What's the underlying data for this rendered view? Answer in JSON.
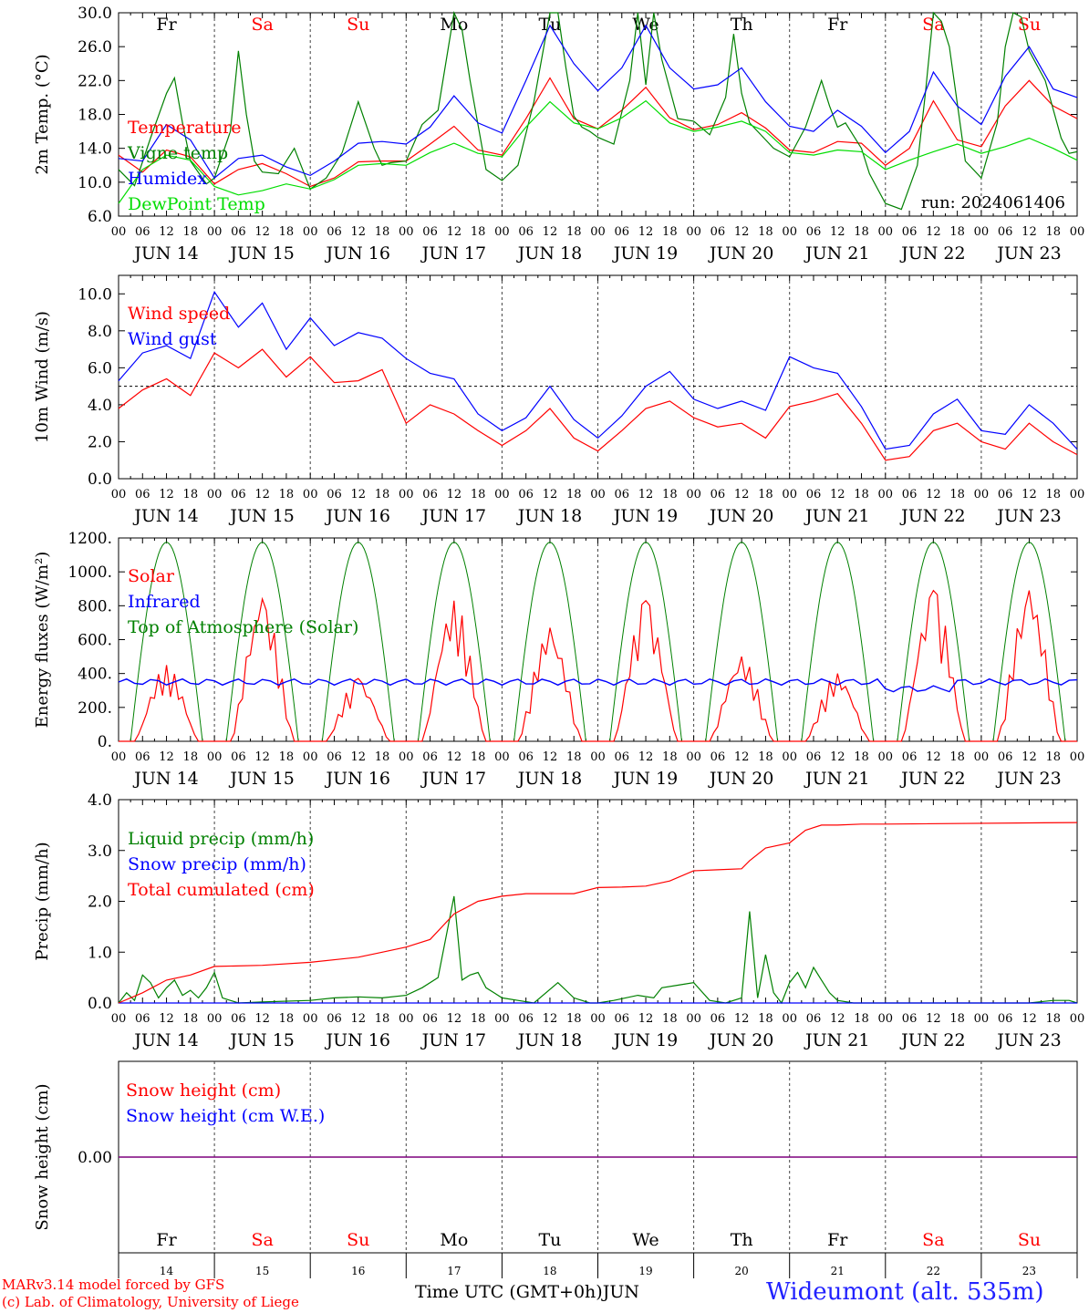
{
  "run_label": "run: 2024061406",
  "day_labels": [
    "Fr",
    "Sa",
    "Su",
    "Mo",
    "Tu",
    "We",
    "Th",
    "Fr",
    "Sa",
    "Su"
  ],
  "weekend_flags": [
    false,
    true,
    true,
    false,
    false,
    false,
    false,
    false,
    true,
    true
  ],
  "date_labels": [
    "JUN 14",
    "JUN 15",
    "JUN 16",
    "JUN 17",
    "JUN 18",
    "JUN 19",
    "JUN 20",
    "JUN 21",
    "JUN 22",
    "JUN 23"
  ],
  "hour_ticks": [
    "00",
    "06",
    "12",
    "18"
  ],
  "bottom_day_numbers": [
    "14",
    "15",
    "16",
    "17",
    "18",
    "19",
    "20",
    "21",
    "22",
    "23"
  ],
  "footer": {
    "model_line1": "MARv3.14 model forced by GFS",
    "model_line2": "(c) Lab. of Climatology, University of Liege",
    "xaxis_title": "Time UTC (GMT+0h)",
    "month": "JUN",
    "station": "Wideumont (alt. 535m)"
  },
  "colors": {
    "red": "#ff0000",
    "green": "#008000",
    "blue": "#0000ff",
    "lightgreen": "#00dd00",
    "purple": "#7f007f"
  },
  "chart_data": [
    {
      "type": "line",
      "ylabel": "2m Temp. (°C)",
      "ylim": [
        6,
        30
      ],
      "yticks": [
        "6.0",
        "10.0",
        "14.0",
        "18.0",
        "22.0",
        "26.0",
        "30.0"
      ],
      "x_unit": "hours since JUN 14 00 UTC",
      "series": [
        {
          "name": "Temperature",
          "color": "red",
          "x": [
            0,
            6,
            12,
            18,
            24,
            30,
            36,
            42,
            48,
            54,
            60,
            66,
            72,
            78,
            84,
            90,
            96,
            102,
            108,
            114,
            120,
            126,
            132,
            138,
            144,
            150,
            156,
            162,
            168,
            174,
            180,
            186,
            192,
            198,
            204,
            210,
            216,
            222,
            228,
            234,
            240
          ],
          "values": [
            13.2,
            11.2,
            13.8,
            13.0,
            9.8,
            11.5,
            12.2,
            11.0,
            9.5,
            10.5,
            12.4,
            12.5,
            12.5,
            14.5,
            16.6,
            13.8,
            13.2,
            17.5,
            22.3,
            17.5,
            16.3,
            18.5,
            21.2,
            17.6,
            16.2,
            16.8,
            18.2,
            16.4,
            13.8,
            13.5,
            14.8,
            14.6,
            12.0,
            14.0,
            19.6,
            15.0,
            14.2,
            19.0,
            22.0,
            19.0,
            17.5
          ]
        },
        {
          "name": "Vigne temp",
          "color": "green",
          "x": [
            0,
            4,
            8,
            12,
            14,
            16,
            18,
            22,
            24,
            28,
            30,
            32,
            34,
            36,
            40,
            44,
            48,
            52,
            56,
            60,
            64,
            66,
            68,
            72,
            76,
            80,
            84,
            86,
            88,
            92,
            96,
            100,
            104,
            108,
            110,
            112,
            114,
            116,
            118,
            120,
            124,
            128,
            130,
            132,
            134,
            136,
            140,
            144,
            148,
            152,
            154,
            156,
            158,
            160,
            164,
            168,
            172,
            176,
            178,
            180,
            182,
            186,
            188,
            192,
            196,
            200,
            202,
            204,
            206,
            208,
            212,
            216,
            220,
            222,
            224,
            226,
            228,
            232,
            236,
            238,
            240
          ],
          "values": [
            11.5,
            9.6,
            15.2,
            20.5,
            22.3,
            17.0,
            12.5,
            9.8,
            10.5,
            16.0,
            25.5,
            18.0,
            12.5,
            11.2,
            11.0,
            14.0,
            9.2,
            10.5,
            13.5,
            19.5,
            14.0,
            12.0,
            12.3,
            12.5,
            16.8,
            18.5,
            30.5,
            28.0,
            22.0,
            11.5,
            10.2,
            12.0,
            19.5,
            30.5,
            32.5,
            23.5,
            17.8,
            16.5,
            16.0,
            15.3,
            14.5,
            22.0,
            30.0,
            21.5,
            32.0,
            24.5,
            17.5,
            17.2,
            15.6,
            20.0,
            27.5,
            20.5,
            17.0,
            16.0,
            14.0,
            13.0,
            16.5,
            22.0,
            19.0,
            16.5,
            17.0,
            14.0,
            11.0,
            7.5,
            6.8,
            12.0,
            20.5,
            31.0,
            29.0,
            26.0,
            12.5,
            10.5,
            17.0,
            26.0,
            32.0,
            29.5,
            25.5,
            22.0,
            15.2,
            13.4,
            13.6
          ]
        },
        {
          "name": "Humidex",
          "color": "blue",
          "x": [
            0,
            6,
            12,
            18,
            24,
            30,
            36,
            42,
            48,
            54,
            60,
            66,
            72,
            78,
            84,
            90,
            96,
            102,
            108,
            114,
            120,
            126,
            132,
            138,
            144,
            150,
            156,
            162,
            168,
            174,
            180,
            186,
            192,
            198,
            204,
            210,
            216,
            222,
            228,
            234,
            240
          ],
          "values": [
            12.8,
            12.5,
            16.8,
            15.0,
            10.5,
            12.8,
            13.2,
            11.8,
            10.8,
            12.5,
            14.6,
            14.8,
            14.5,
            16.5,
            20.2,
            17.0,
            15.8,
            22.0,
            28.5,
            24.0,
            20.8,
            23.5,
            28.5,
            23.5,
            21.0,
            21.5,
            23.5,
            19.5,
            16.6,
            16.0,
            18.5,
            16.6,
            13.5,
            16.0,
            23.0,
            19.0,
            16.8,
            22.5,
            26.0,
            21.0,
            20.0
          ]
        },
        {
          "name": "DewPoint Temp",
          "color": "lightgreen",
          "x": [
            0,
            6,
            12,
            18,
            24,
            30,
            36,
            42,
            48,
            54,
            60,
            66,
            72,
            78,
            84,
            90,
            96,
            102,
            108,
            114,
            120,
            126,
            132,
            138,
            144,
            150,
            156,
            162,
            168,
            174,
            180,
            186,
            192,
            198,
            204,
            210,
            216,
            222,
            228,
            234,
            240
          ],
          "values": [
            7.5,
            11.5,
            13.2,
            12.6,
            9.5,
            8.5,
            9.0,
            9.8,
            9.2,
            10.3,
            12.0,
            12.2,
            12.0,
            13.5,
            14.6,
            13.4,
            13.0,
            16.5,
            19.5,
            17.0,
            16.3,
            17.6,
            19.6,
            17.0,
            16.0,
            16.5,
            17.2,
            16.0,
            13.5,
            13.2,
            13.8,
            13.6,
            11.5,
            12.6,
            13.6,
            14.5,
            13.4,
            14.2,
            15.2,
            14.0,
            12.6
          ]
        }
      ]
    },
    {
      "type": "line",
      "ylabel": "10m Wind (m/s)",
      "ylim": [
        0,
        11
      ],
      "yticks": [
        "0.0",
        "2.0",
        "4.0",
        "6.0",
        "8.0",
        "10.0"
      ],
      "reference_line": 5,
      "x_unit": "hours since JUN 14 00 UTC",
      "series": [
        {
          "name": "Wind speed",
          "color": "red",
          "x": [
            0,
            6,
            12,
            18,
            24,
            30,
            36,
            42,
            48,
            54,
            60,
            66,
            72,
            78,
            84,
            90,
            96,
            102,
            108,
            114,
            120,
            126,
            132,
            138,
            144,
            150,
            156,
            162,
            168,
            174,
            180,
            186,
            192,
            198,
            204,
            210,
            216,
            222,
            228,
            234,
            240
          ],
          "values": [
            3.8,
            4.8,
            5.4,
            4.5,
            6.8,
            6.0,
            7.0,
            5.5,
            6.6,
            5.2,
            5.3,
            5.9,
            3.0,
            4.0,
            3.5,
            2.6,
            1.8,
            2.6,
            3.8,
            2.2,
            1.5,
            2.6,
            3.8,
            4.2,
            3.3,
            2.8,
            3.0,
            2.2,
            3.9,
            4.2,
            4.6,
            3.0,
            1.0,
            1.2,
            2.6,
            3.0,
            2.0,
            1.6,
            3.0,
            2.0,
            1.3
          ]
        },
        {
          "name": "Wind gust",
          "color": "blue",
          "x": [
            0,
            6,
            12,
            18,
            24,
            30,
            36,
            42,
            48,
            54,
            60,
            66,
            72,
            78,
            84,
            90,
            96,
            102,
            108,
            114,
            120,
            126,
            132,
            138,
            144,
            150,
            156,
            162,
            168,
            174,
            180,
            186,
            192,
            198,
            204,
            210,
            216,
            222,
            228,
            234,
            240
          ],
          "values": [
            5.3,
            6.8,
            7.2,
            6.5,
            10.1,
            8.2,
            9.5,
            7.0,
            8.7,
            7.2,
            7.9,
            7.6,
            6.5,
            5.7,
            5.4,
            3.5,
            2.6,
            3.3,
            5.0,
            3.2,
            2.2,
            3.4,
            5.0,
            5.8,
            4.3,
            3.8,
            4.2,
            3.7,
            6.6,
            6.0,
            5.7,
            3.9,
            1.6,
            1.8,
            3.5,
            4.3,
            2.6,
            2.4,
            4.0,
            3.0,
            1.6
          ]
        }
      ]
    },
    {
      "type": "line",
      "ylabel": "Energy fluxes (W/m²)",
      "ylim": [
        0,
        1200
      ],
      "yticks": [
        "0.",
        "200.",
        "400.",
        "600.",
        "800.",
        "1000.",
        "1200."
      ],
      "x_unit": "hours since JUN 14 00 UTC",
      "toa_peak": 1175,
      "series": [
        {
          "name": "Solar",
          "color": "red",
          "peaks": [
            450,
            840,
            370,
            830,
            670,
            830,
            500,
            400,
            890,
            890
          ]
        },
        {
          "name": "Infrared",
          "color": "blue",
          "level": 350
        },
        {
          "name": "Top of Atmosphere (Solar)",
          "color": "green",
          "peak": 1175
        }
      ]
    },
    {
      "type": "line",
      "ylabel": "Precip (mm/h)",
      "ylim": [
        0,
        4
      ],
      "yticks": [
        "0.0",
        "1.0",
        "2.0",
        "3.0",
        "4.0"
      ],
      "x_unit": "hours since JUN 14 00 UTC",
      "series": [
        {
          "name": "Liquid precip (mm/h)",
          "color": "green",
          "x": [
            0,
            2,
            4,
            6,
            8,
            10,
            12,
            14,
            16,
            18,
            20,
            22,
            24,
            26,
            30,
            36,
            48,
            54,
            60,
            66,
            72,
            76,
            80,
            84,
            86,
            88,
            90,
            92,
            94,
            96,
            100,
            104,
            110,
            114,
            118,
            120,
            124,
            130,
            134,
            136,
            140,
            144,
            148,
            152,
            156,
            158,
            160,
            162,
            164,
            166,
            168,
            170,
            172,
            174,
            176,
            178,
            180,
            184,
            190,
            200,
            216,
            228,
            234,
            238,
            240
          ],
          "values": [
            0,
            0.2,
            0.05,
            0.55,
            0.4,
            0.1,
            0.3,
            0.45,
            0.15,
            0.25,
            0.1,
            0.3,
            0.6,
            0.1,
            0,
            0.02,
            0.05,
            0.1,
            0.12,
            0.1,
            0.15,
            0.3,
            0.5,
            2.1,
            0.45,
            0.55,
            0.6,
            0.3,
            0.2,
            0.1,
            0.05,
            0,
            0.4,
            0.1,
            0,
            0,
            0.05,
            0.15,
            0.1,
            0.3,
            0.35,
            0.4,
            0.05,
            0,
            0.1,
            1.8,
            0.1,
            0.95,
            0.2,
            0,
            0.4,
            0.6,
            0.3,
            0.7,
            0.45,
            0.2,
            0.05,
            0,
            0,
            0,
            0,
            0,
            0.05,
            0.05,
            0
          ]
        },
        {
          "name": "Snow precip (mm/h)",
          "color": "blue",
          "x": [
            0,
            240
          ],
          "values": [
            0,
            0
          ]
        },
        {
          "name": "Total cumulated (cm)",
          "color": "red",
          "x": [
            0,
            6,
            12,
            18,
            24,
            36,
            48,
            60,
            66,
            72,
            78,
            84,
            90,
            96,
            102,
            108,
            114,
            120,
            126,
            132,
            138,
            144,
            150,
            156,
            158,
            162,
            168,
            172,
            176,
            180,
            186,
            192,
            240
          ],
          "values": [
            0,
            0.2,
            0.45,
            0.55,
            0.72,
            0.74,
            0.8,
            0.9,
            1.0,
            1.1,
            1.25,
            1.75,
            2.0,
            2.1,
            2.15,
            2.15,
            2.15,
            2.27,
            2.28,
            2.3,
            2.4,
            2.6,
            2.62,
            2.64,
            2.8,
            3.05,
            3.15,
            3.4,
            3.5,
            3.5,
            3.52,
            3.52,
            3.55
          ]
        }
      ]
    },
    {
      "type": "line",
      "ylabel": "Snow height (cm)",
      "ylim": [
        -1,
        1
      ],
      "yticks": [
        "0.00"
      ],
      "x_unit": "hours since JUN 14 00 UTC",
      "series": [
        {
          "name": "Snow height (cm)",
          "color": "red",
          "x": [
            0,
            240
          ],
          "values": [
            0,
            0
          ]
        },
        {
          "name": "Snow height (cm W.E.)",
          "color": "blue",
          "x": [
            0,
            240
          ],
          "values": [
            0,
            0
          ]
        }
      ]
    }
  ]
}
